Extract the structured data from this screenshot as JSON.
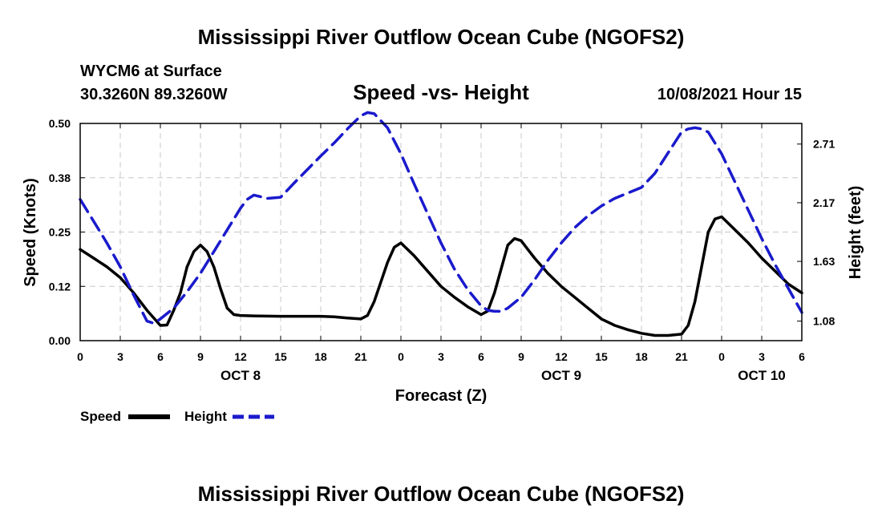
{
  "page": {
    "title_top": "Mississippi River Outflow Ocean Cube (NGOFS2)",
    "title_bottom": "Mississippi River Outflow Ocean Cube (NGOFS2)",
    "station": "WYCM6 at Surface",
    "coords": "30.3260N  89.3260W",
    "plot_title": "Speed -vs- Height",
    "datetime": "10/08/2021 Hour 15"
  },
  "chart_data": {
    "type": "line",
    "title": "Speed -vs- Height",
    "xlabel": "Forecast (Z)",
    "ylabel": "Speed (Knots)",
    "y2label": "Height (feet)",
    "x_unit": "hours since 10/08 00Z",
    "xlim": [
      0,
      54
    ],
    "ylim": [
      0,
      0.5
    ],
    "y2lim": [
      0.9,
      2.9
    ],
    "grid": true,
    "x_ticks": [
      {
        "x": 0,
        "label": "0"
      },
      {
        "x": 3,
        "label": "3"
      },
      {
        "x": 6,
        "label": "6"
      },
      {
        "x": 9,
        "label": "9"
      },
      {
        "x": 12,
        "label": "12"
      },
      {
        "x": 15,
        "label": "15"
      },
      {
        "x": 18,
        "label": "18"
      },
      {
        "x": 21,
        "label": "21"
      },
      {
        "x": 24,
        "label": "0"
      },
      {
        "x": 27,
        "label": "3"
      },
      {
        "x": 30,
        "label": "6"
      },
      {
        "x": 33,
        "label": "9"
      },
      {
        "x": 36,
        "label": "12"
      },
      {
        "x": 39,
        "label": "15"
      },
      {
        "x": 42,
        "label": "18"
      },
      {
        "x": 45,
        "label": "21"
      },
      {
        "x": 48,
        "label": "0"
      },
      {
        "x": 51,
        "label": "3"
      },
      {
        "x": 54,
        "label": "6"
      }
    ],
    "date_labels": [
      {
        "x": 12,
        "label": "OCT 8"
      },
      {
        "x": 36,
        "label": "OCT 9"
      },
      {
        "x": 51,
        "label": "OCT 10"
      }
    ],
    "y_ticks": [
      "0.00",
      "0.12",
      "0.25",
      "0.38",
      "0.50"
    ],
    "y_tick_values": [
      0,
      0.125,
      0.25,
      0.375,
      0.5
    ],
    "y2_ticks": [
      "1.08",
      "1.63",
      "2.17",
      "2.71"
    ],
    "y2_tick_values": [
      1.08,
      1.63,
      2.17,
      2.71
    ],
    "legend": [
      {
        "name": "Speed",
        "color": "#000000",
        "dash": false
      },
      {
        "name": "Height",
        "color": "#1a1acc",
        "dash": true
      }
    ],
    "series": [
      {
        "name": "Speed",
        "axis": "left",
        "color": "#000000",
        "x": [
          0,
          1,
          2,
          3,
          4,
          5,
          6,
          6.5,
          7,
          7.5,
          8,
          8.5,
          9,
          9.5,
          10,
          10.5,
          11,
          11.5,
          12,
          13,
          15,
          18,
          19,
          20,
          21,
          21.5,
          22,
          23,
          23.5,
          24,
          25,
          26,
          27,
          28,
          29,
          30,
          30.5,
          31,
          31.5,
          32,
          32.5,
          33,
          33.5,
          34,
          35,
          36,
          37,
          38,
          39,
          40,
          41,
          42,
          43,
          44,
          45,
          45.5,
          46,
          46.5,
          47,
          47.5,
          48,
          49,
          50,
          51,
          52,
          53,
          54
        ],
        "values": [
          0.21,
          0.19,
          0.17,
          0.145,
          0.11,
          0.07,
          0.035,
          0.036,
          0.07,
          0.11,
          0.17,
          0.205,
          0.22,
          0.205,
          0.17,
          0.12,
          0.075,
          0.06,
          0.058,
          0.057,
          0.056,
          0.056,
          0.055,
          0.052,
          0.05,
          0.058,
          0.09,
          0.18,
          0.215,
          0.225,
          0.195,
          0.16,
          0.125,
          0.1,
          0.078,
          0.06,
          0.068,
          0.11,
          0.165,
          0.22,
          0.235,
          0.23,
          0.21,
          0.19,
          0.155,
          0.125,
          0.1,
          0.075,
          0.05,
          0.035,
          0.025,
          0.017,
          0.012,
          0.012,
          0.015,
          0.035,
          0.09,
          0.17,
          0.25,
          0.28,
          0.285,
          0.255,
          0.225,
          0.19,
          0.16,
          0.13,
          0.11
        ]
      },
      {
        "name": "Height",
        "axis": "right",
        "color": "#1a1acc",
        "x": [
          0,
          1,
          2,
          3,
          4,
          5,
          5.5,
          6,
          7,
          8,
          9,
          10,
          11,
          12,
          12.5,
          13,
          14,
          15,
          16,
          18,
          19,
          20,
          21,
          21.5,
          22,
          23,
          24,
          25,
          26,
          27,
          28,
          29,
          30,
          30.5,
          31,
          31.5,
          32,
          33,
          34,
          35,
          36,
          37,
          38,
          39,
          40,
          41,
          42,
          43,
          44,
          45,
          45.5,
          46,
          46.5,
          47,
          48,
          49,
          50,
          51,
          52,
          53,
          54
        ],
        "values": [
          2.2,
          2.0,
          1.8,
          1.58,
          1.32,
          1.08,
          1.06,
          1.1,
          1.2,
          1.35,
          1.52,
          1.72,
          1.92,
          2.12,
          2.2,
          2.24,
          2.21,
          2.22,
          2.35,
          2.6,
          2.72,
          2.85,
          2.97,
          3.0,
          2.99,
          2.86,
          2.62,
          2.34,
          2.07,
          1.8,
          1.56,
          1.37,
          1.22,
          1.18,
          1.17,
          1.17,
          1.2,
          1.3,
          1.46,
          1.64,
          1.8,
          1.94,
          2.05,
          2.14,
          2.21,
          2.26,
          2.31,
          2.44,
          2.63,
          2.82,
          2.85,
          2.86,
          2.85,
          2.82,
          2.62,
          2.36,
          2.1,
          1.84,
          1.6,
          1.38,
          1.16
        ]
      }
    ]
  }
}
